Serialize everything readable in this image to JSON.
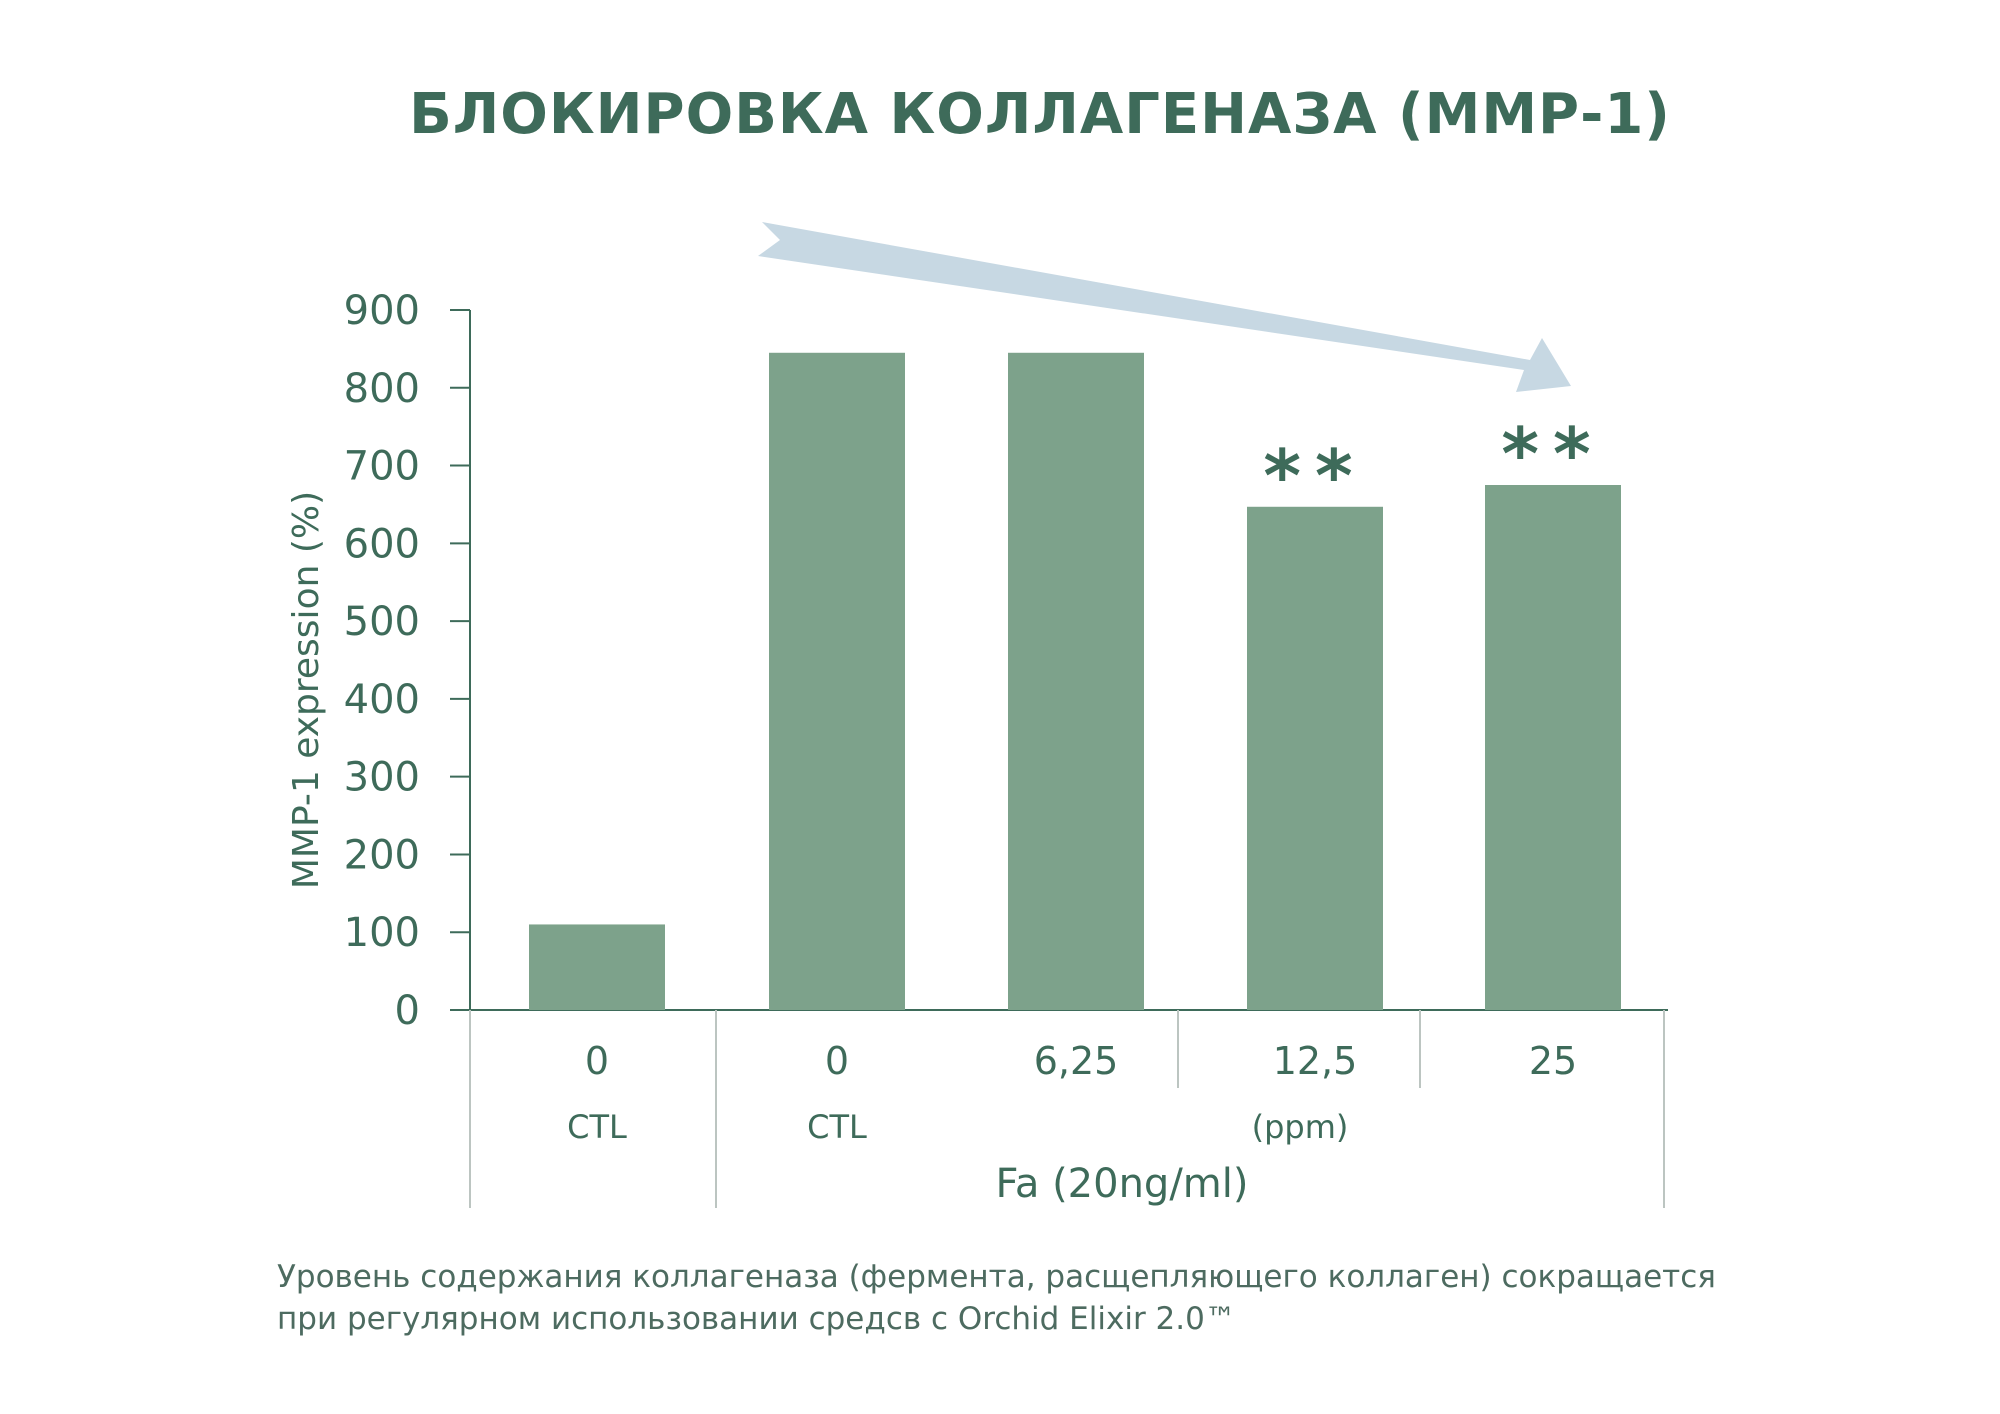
{
  "chart_data": {
    "type": "bar",
    "title": "БЛОКИРОВКА КОЛЛАГЕНАЗА (ММР-1)",
    "ylabel": "MMP-1 expression (%)",
    "xlabel": "Fa (20ng/ml)",
    "ylim": [
      0,
      900
    ],
    "yticks": [
      "0",
      "100",
      "200",
      "300",
      "400",
      "500",
      "600",
      "700",
      "800",
      "900"
    ],
    "categories": [
      "0",
      "0",
      "6,25",
      "12,5",
      "25"
    ],
    "values": [
      110,
      845,
      845,
      647,
      675
    ],
    "annotations": [
      "",
      "",
      "",
      "**",
      "**"
    ],
    "group_labels": [
      "CTL",
      "CTL",
      "(ppm)"
    ],
    "bar_color": "#7da28b",
    "text_color": "#3e6b5a",
    "trend_arrow_color": "#c7d8e3",
    "grid": false
  },
  "caption": {
    "line1": "Уровень содержания коллагеназа (фермента, расщепляющего коллаген) сокращается",
    "line2": "при регулярном использовании средсв с Orchid Elixir 2.0™"
  }
}
